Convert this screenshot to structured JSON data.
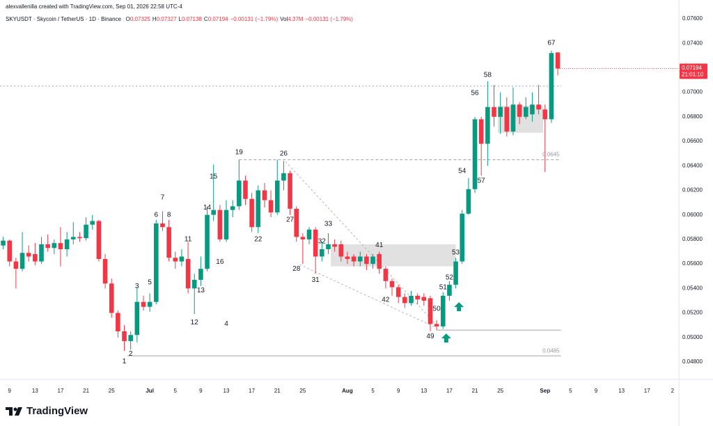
{
  "header": {
    "credit": "alexvallenilla created with TradingView.com, Sep 01, 2026 22:58 UTC-4",
    "symbol": "SKYUSDT · Skycoin / TetherUS · 1D · Binance",
    "ohlc": [
      {
        "k": "O",
        "v": "0.07325"
      },
      {
        "k": "H",
        "v": "0.07327"
      },
      {
        "k": "L",
        "v": "0.07138"
      },
      {
        "k": "C",
        "v": "0.07194"
      }
    ],
    "change": "−0.00131 (−1.79%)",
    "vol_label": "Vol",
    "vol": "4.37M",
    "vol_change": "−0.00131 (−1.79%)"
  },
  "chart_data": {
    "type": "candlestick",
    "x": [
      0,
      1,
      2,
      3,
      4,
      5,
      6,
      7,
      8,
      9,
      10,
      11,
      12,
      13,
      14,
      15,
      16,
      17,
      18,
      19,
      20,
      21,
      22,
      23,
      24,
      25,
      26,
      27,
      28,
      29,
      30,
      31,
      32,
      33,
      34,
      35,
      36,
      37,
      38,
      39,
      40,
      41,
      42,
      43,
      44,
      45,
      46,
      47,
      48,
      49,
      50,
      51,
      52,
      53,
      54,
      55,
      56,
      57,
      58,
      59,
      60,
      61,
      62,
      63,
      64,
      65,
      66,
      67,
      68,
      69,
      70,
      71,
      72,
      73,
      74,
      75,
      76,
      77,
      78,
      79,
      80,
      81,
      82,
      83,
      84,
      85,
      86,
      87
    ],
    "open": [
      0.0575,
      0.0579,
      0.0562,
      0.0556,
      0.0569,
      0.0568,
      0.0562,
      0.0576,
      0.0573,
      0.0577,
      0.0572,
      0.058,
      0.0582,
      0.0581,
      0.0592,
      0.0595,
      0.0564,
      0.0544,
      0.052,
      0.0505,
      0.0497,
      0.0502,
      0.0529,
      0.0525,
      0.0529,
      0.0593,
      0.059,
      0.0565,
      0.0562,
      0.0564,
      0.054,
      0.0547,
      0.0556,
      0.06,
      0.0604,
      0.058,
      0.0604,
      0.0607,
      0.0628,
      0.0613,
      0.059,
      0.062,
      0.0612,
      0.0602,
      0.0628,
      0.0634,
      0.0605,
      0.0582,
      0.058,
      0.0588,
      0.0566,
      0.0572,
      0.0576,
      0.0576,
      0.0566,
      0.0566,
      0.0562,
      0.0566,
      0.056,
      0.0568,
      0.0556,
      0.0546,
      0.0541,
      0.0533,
      0.0528,
      0.0534,
      0.0533,
      0.0532,
      0.0511,
      0.0509,
      0.0534,
      0.0543,
      0.0562,
      0.0601,
      0.0621,
      0.0678,
      0.0658,
      0.0688,
      0.068,
      0.0688,
      0.0668,
      0.069,
      0.068,
      0.0682,
      0.069,
      0.0686,
      0.0678,
      0.07325
    ],
    "high": [
      0.0582,
      0.058,
      0.0565,
      0.0586,
      0.0575,
      0.0577,
      0.0582,
      0.0584,
      0.058,
      0.059,
      0.0586,
      0.0594,
      0.0586,
      0.0598,
      0.06,
      0.0596,
      0.0568,
      0.0548,
      0.0522,
      0.051,
      0.0505,
      0.054,
      0.0534,
      0.0536,
      0.0596,
      0.0603,
      0.0596,
      0.057,
      0.0572,
      0.0578,
      0.0552,
      0.0566,
      0.0607,
      0.0641,
      0.0608,
      0.0612,
      0.0612,
      0.0645,
      0.0632,
      0.0618,
      0.0624,
      0.0626,
      0.062,
      0.0645,
      0.0644,
      0.0636,
      0.0607,
      0.0585,
      0.059,
      0.059,
      0.0578,
      0.0585,
      0.058,
      0.0579,
      0.057,
      0.0568,
      0.057,
      0.0568,
      0.0568,
      0.057,
      0.0558,
      0.0548,
      0.0543,
      0.0536,
      0.0538,
      0.0536,
      0.0536,
      0.0534,
      0.0514,
      0.0537,
      0.0546,
      0.0565,
      0.0604,
      0.063,
      0.068,
      0.068,
      0.0709,
      0.0706,
      0.07,
      0.0696,
      0.0704,
      0.0692,
      0.0696,
      0.07,
      0.0706,
      0.069,
      0.0734,
      0.07327
    ],
    "low": [
      0.0572,
      0.0558,
      0.054,
      0.0554,
      0.0562,
      0.0559,
      0.056,
      0.057,
      0.0568,
      0.0558,
      0.0566,
      0.0576,
      0.0578,
      0.0579,
      0.0588,
      0.0562,
      0.054,
      0.0516,
      0.05,
      0.0489,
      0.049,
      0.0496,
      0.0522,
      0.0521,
      0.0527,
      0.0587,
      0.0562,
      0.0556,
      0.0558,
      0.0536,
      0.0519,
      0.0542,
      0.0554,
      0.0595,
      0.0578,
      0.0578,
      0.0598,
      0.0604,
      0.0608,
      0.0586,
      0.0585,
      0.0606,
      0.0598,
      0.06,
      0.062,
      0.06,
      0.0578,
      0.056,
      0.0576,
      0.0552,
      0.0562,
      0.0568,
      0.057,
      0.0562,
      0.056,
      0.0558,
      0.0558,
      0.0555,
      0.0556,
      0.0552,
      0.054,
      0.0534,
      0.0528,
      0.0524,
      0.0526,
      0.0527,
      0.0526,
      0.0505,
      0.0506,
      0.0507,
      0.053,
      0.054,
      0.056,
      0.06,
      0.0618,
      0.0632,
      0.064,
      0.0672,
      0.0666,
      0.0664,
      0.0665,
      0.0674,
      0.0678,
      0.0676,
      0.0682,
      0.0635,
      0.0675,
      0.07138
    ],
    "close": [
      0.0579,
      0.0562,
      0.0556,
      0.0569,
      0.0566,
      0.0562,
      0.0576,
      0.0573,
      0.0577,
      0.0572,
      0.058,
      0.0582,
      0.0581,
      0.0592,
      0.0595,
      0.0564,
      0.0544,
      0.052,
      0.0505,
      0.0497,
      0.0502,
      0.0529,
      0.0525,
      0.0529,
      0.0593,
      0.059,
      0.0565,
      0.0562,
      0.0566,
      0.054,
      0.0547,
      0.0556,
      0.06,
      0.0604,
      0.058,
      0.0604,
      0.0607,
      0.0628,
      0.0613,
      0.059,
      0.062,
      0.0612,
      0.0602,
      0.0628,
      0.0634,
      0.0605,
      0.0582,
      0.058,
      0.0588,
      0.0566,
      0.0572,
      0.0576,
      0.0574,
      0.0566,
      0.0564,
      0.0562,
      0.0566,
      0.056,
      0.0566,
      0.0556,
      0.0546,
      0.0541,
      0.0533,
      0.0528,
      0.0534,
      0.0531,
      0.053,
      0.0511,
      0.0509,
      0.0534,
      0.0543,
      0.0562,
      0.0601,
      0.0621,
      0.0678,
      0.0658,
      0.0688,
      0.068,
      0.0688,
      0.0668,
      0.069,
      0.068,
      0.0688,
      0.069,
      0.0686,
      0.0678,
      0.0732,
      0.07194
    ],
    "up_color": "#089981",
    "down_color": "#f23645",
    "xlim": [
      -0.5,
      106
    ],
    "xticks": [
      {
        "value": 1,
        "label": "9"
      },
      {
        "value": 5,
        "label": "13"
      },
      {
        "value": 9,
        "label": "17"
      },
      {
        "value": 13,
        "label": "21"
      },
      {
        "value": 17,
        "label": "25"
      },
      {
        "value": 23,
        "label": "Jul"
      },
      {
        "value": 27,
        "label": "5"
      },
      {
        "value": 31,
        "label": "9"
      },
      {
        "value": 35,
        "label": "13"
      },
      {
        "value": 39,
        "label": "17"
      },
      {
        "value": 43,
        "label": "21"
      },
      {
        "value": 47,
        "label": "25"
      },
      {
        "value": 54,
        "label": "Aug"
      },
      {
        "value": 58,
        "label": "5"
      },
      {
        "value": 62,
        "label": "9"
      },
      {
        "value": 66,
        "label": "13"
      },
      {
        "value": 70,
        "label": "17"
      },
      {
        "value": 74,
        "label": "21"
      },
      {
        "value": 78,
        "label": "25"
      },
      {
        "value": 85,
        "label": "Sep"
      },
      {
        "value": 89,
        "label": "5"
      },
      {
        "value": 93,
        "label": "9"
      },
      {
        "value": 97,
        "label": "13"
      },
      {
        "value": 101,
        "label": "17"
      },
      {
        "value": 105,
        "label": "2"
      }
    ],
    "ylim": [
      0.04658,
      0.07753
    ],
    "yticks": [
      {
        "value": 0.048,
        "label": "0.04800"
      },
      {
        "value": 0.05,
        "label": "0.05000"
      },
      {
        "value": 0.052,
        "label": "0.05200"
      },
      {
        "value": 0.054,
        "label": "0.05400"
      },
      {
        "value": 0.056,
        "label": "0.05600"
      },
      {
        "value": 0.058,
        "label": "0.05800"
      },
      {
        "value": 0.06,
        "label": "0.06000"
      },
      {
        "value": 0.062,
        "label": "0.06200"
      },
      {
        "value": 0.064,
        "label": "0.06400"
      },
      {
        "value": 0.066,
        "label": "0.06600"
      },
      {
        "value": 0.068,
        "label": "0.06800"
      },
      {
        "value": 0.07,
        "label": "0.07000"
      },
      {
        "value": 0.072,
        "label": "0.07200"
      },
      {
        "value": 0.074,
        "label": "0.07400"
      },
      {
        "value": 0.076,
        "label": "0.07600"
      }
    ],
    "grid": false,
    "annotations": [
      {
        "label": "1",
        "x": 19,
        "price": 0.04805
      },
      {
        "label": "2",
        "x": 20,
        "price": 0.04867
      },
      {
        "label": "3",
        "x": 21,
        "price": 0.05418
      },
      {
        "label": "4",
        "x": 35,
        "price": 0.05111
      },
      {
        "label": "5",
        "x": 23,
        "price": 0.05447
      },
      {
        "label": "6",
        "x": 24,
        "price": 0.05998
      },
      {
        "label": "7",
        "x": 25,
        "price": 0.0614
      },
      {
        "label": "8",
        "x": 26,
        "price": 0.05998
      },
      {
        "label": "11",
        "x": 29,
        "price": 0.05799
      },
      {
        "label": "12",
        "x": 30,
        "price": 0.05123
      },
      {
        "label": "13",
        "x": 31,
        "price": 0.05384
      },
      {
        "label": "14",
        "x": 32,
        "price": 0.0606
      },
      {
        "label": "15",
        "x": 33,
        "price": 0.0631
      },
      {
        "label": "16",
        "x": 34,
        "price": 0.05617
      },
      {
        "label": "19",
        "x": 37,
        "price": 0.06509
      },
      {
        "label": "22",
        "x": 40,
        "price": 0.05799
      },
      {
        "label": "26",
        "x": 44,
        "price": 0.06498
      },
      {
        "label": "27",
        "x": 45,
        "price": 0.05958
      },
      {
        "label": "28",
        "x": 46,
        "price": 0.0556
      },
      {
        "label": "31",
        "x": 49,
        "price": 0.05469
      },
      {
        "label": "32",
        "x": 50,
        "price": 0.05782
      },
      {
        "label": "33",
        "x": 51,
        "price": 0.05924
      },
      {
        "label": "41",
        "x": 59,
        "price": 0.05753
      },
      {
        "label": "42",
        "x": 60,
        "price": 0.05305
      },
      {
        "label": "49",
        "x": 67,
        "price": 0.05009
      },
      {
        "label": "50",
        "x": 68,
        "price": 0.05231
      },
      {
        "label": "51",
        "x": 69,
        "price": 0.05407
      },
      {
        "label": "52",
        "x": 70,
        "price": 0.05487
      },
      {
        "label": "53",
        "x": 71,
        "price": 0.05691
      },
      {
        "label": "54",
        "x": 72,
        "price": 0.06356
      },
      {
        "label": "56",
        "x": 74,
        "price": 0.06992
      },
      {
        "label": "57",
        "x": 75,
        "price": 0.06276
      },
      {
        "label": "58",
        "x": 76,
        "price": 0.0714
      },
      {
        "label": "67",
        "x": 86,
        "price": 0.07401
      }
    ],
    "levels": [
      {
        "value": 0.0705,
        "from": -0.5,
        "style": "dotted",
        "labeled": false
      },
      {
        "value": 0.0645,
        "from": 37,
        "style": "dashed",
        "labeled": true
      },
      {
        "value": 0.0485,
        "from": 19.5,
        "style": "solid",
        "labeled": true
      },
      {
        "value": 0.0506,
        "from": 68,
        "style": "solid",
        "labeled": false
      }
    ],
    "levels_to": 87.5,
    "zones": [
      {
        "x0": 51.4,
        "x1": 71,
        "top": 0.0576,
        "bottom": 0.0558
      },
      {
        "x0": 77.6,
        "x1": 84.7,
        "top": 0.0689,
        "bottom": 0.0667
      }
    ],
    "trendlines": [
      {
        "x0": 44.3,
        "p0": 0.06435,
        "x1": 68.3,
        "p1": 0.05083
      },
      {
        "x0": 46.5,
        "p0": 0.05594,
        "x1": 67.8,
        "p1": 0.05083
      }
    ],
    "arrows": [
      {
        "x": 69.5,
        "price": 0.05032
      },
      {
        "x": 71.5,
        "price": 0.05288
      }
    ],
    "last_price": 0.07194,
    "countdown": "21:01:10"
  },
  "footer": {
    "brand": "TradingView"
  }
}
